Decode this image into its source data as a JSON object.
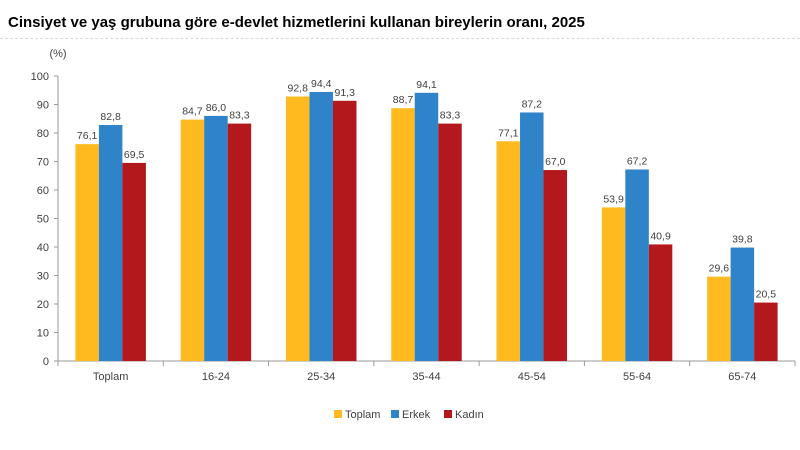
{
  "title": "Cinsiyet ve yaş grubuna göre e-devlet hizmetlerini kullanan bireylerin oranı, 2025",
  "chart_data": {
    "type": "bar",
    "unit_label": "(%)",
    "categories": [
      "Toplam",
      "16-24",
      "25-34",
      "35-44",
      "45-54",
      "55-64",
      "65-74"
    ],
    "series": [
      {
        "name": "Toplam",
        "color": "#ffba1f",
        "values": [
          76.1,
          84.7,
          92.8,
          88.7,
          77.1,
          53.9,
          29.6
        ]
      },
      {
        "name": "Erkek",
        "color": "#2f83c8",
        "values": [
          82.8,
          86.0,
          94.4,
          94.1,
          87.2,
          67.2,
          39.8
        ]
      },
      {
        "name": "Kadın",
        "color": "#b3181c",
        "values": [
          69.5,
          83.3,
          91.3,
          83.3,
          67.0,
          40.9,
          20.5
        ]
      }
    ],
    "ylim": [
      0,
      100
    ],
    "yticks": [
      "0",
      "10",
      "20",
      "30",
      "40",
      "50",
      "60",
      "70",
      "80",
      "90",
      "100"
    ],
    "grid": false,
    "legend_position": "bottom"
  }
}
